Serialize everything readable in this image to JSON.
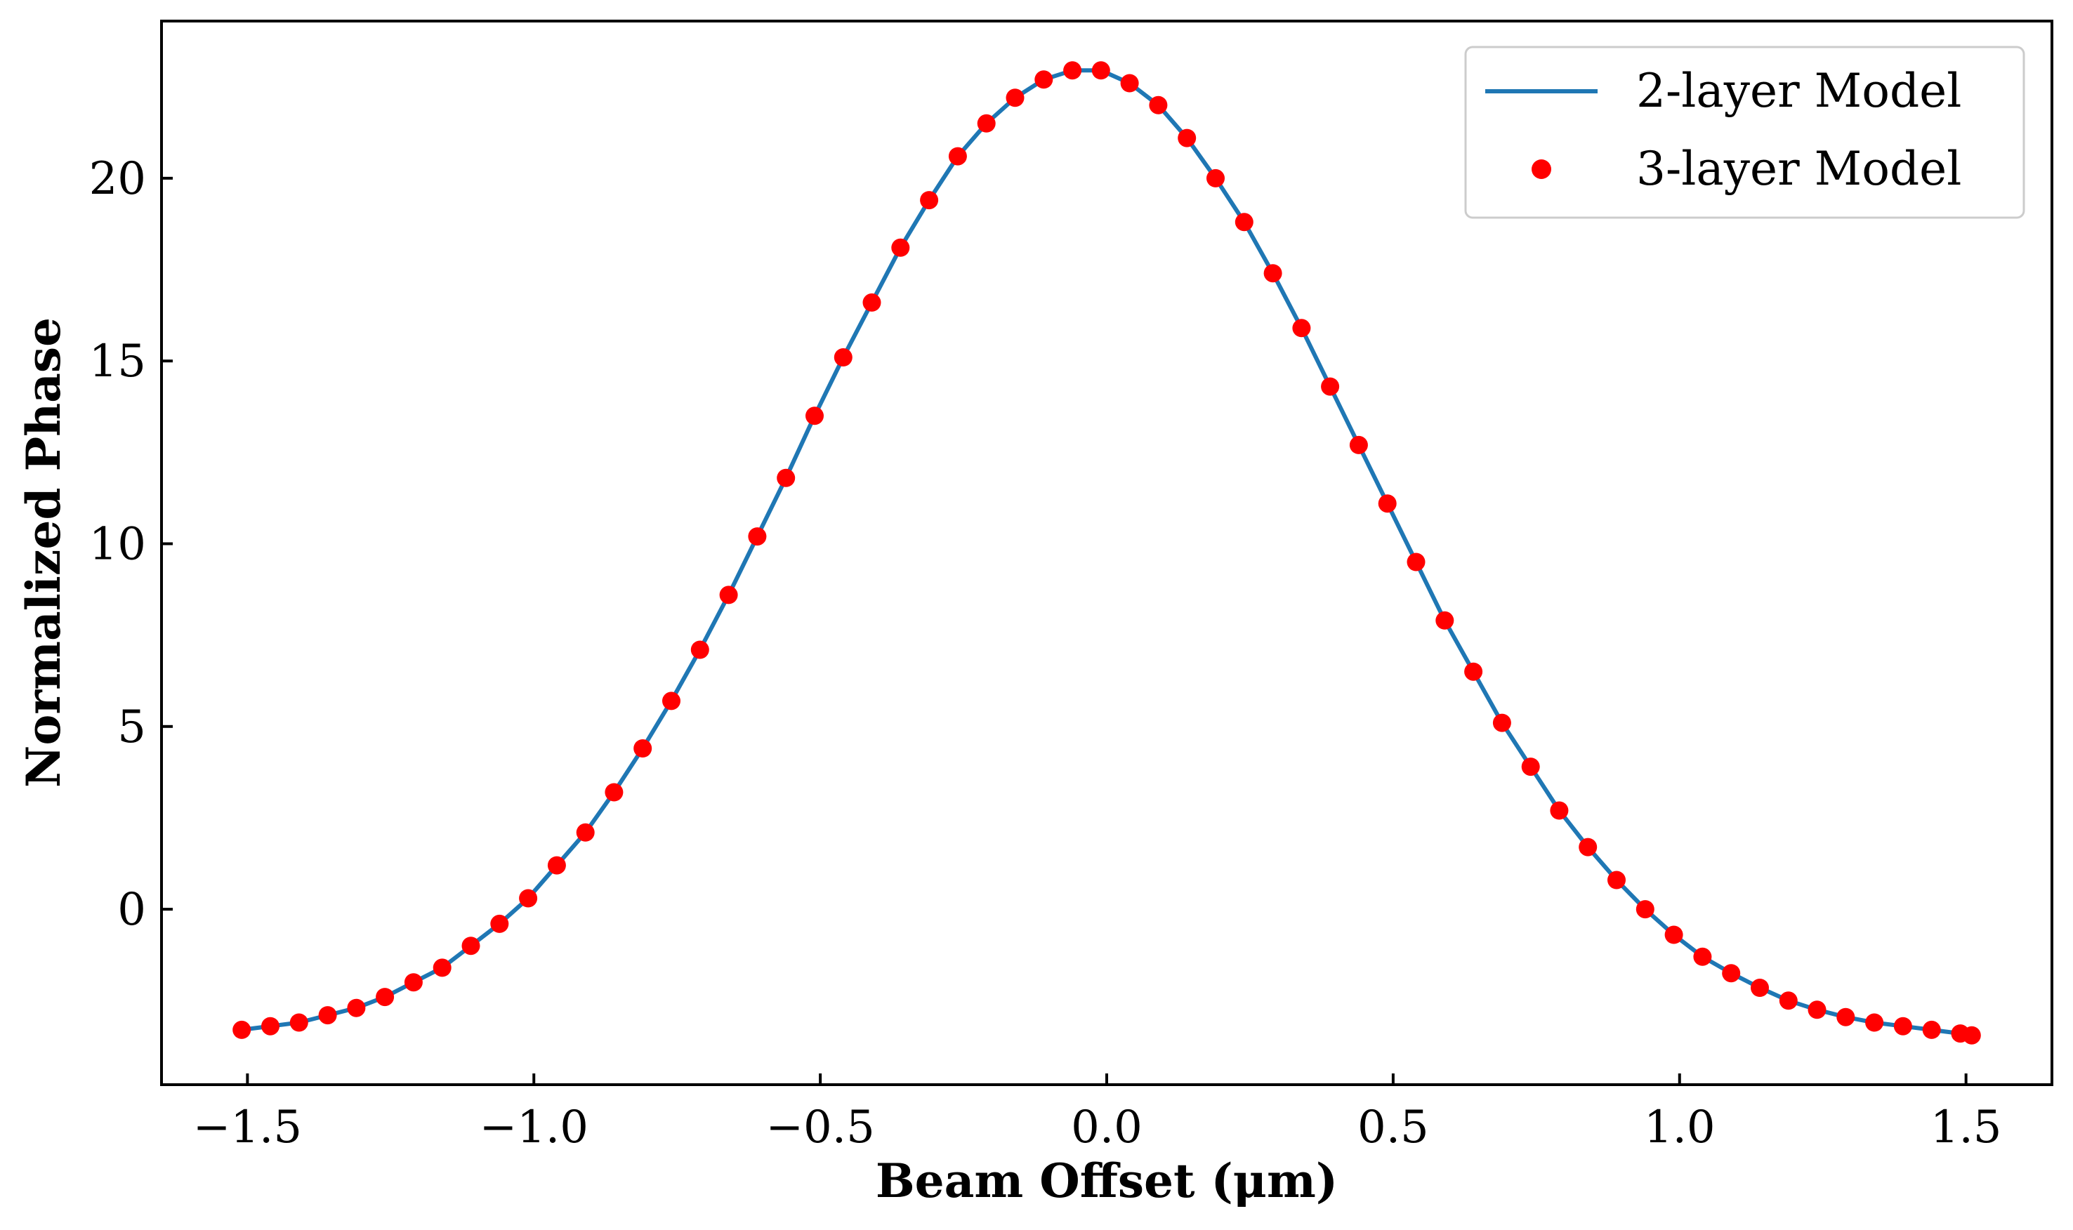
{
  "chart_data": {
    "type": "line",
    "title": "",
    "xlabel": "Beam Offset (μm)",
    "ylabel": "Normalized Phase",
    "xlim": [
      -1.65,
      1.65
    ],
    "ylim": [
      -4.8,
      24.3
    ],
    "xticks": [
      -1.5,
      -1.0,
      -0.5,
      0.0,
      0.5,
      1.0,
      1.5
    ],
    "xtick_labels": [
      "−1.5",
      "−1.0",
      "−0.5",
      "0.0",
      "0.5",
      "1.0",
      "1.5"
    ],
    "yticks": [
      0,
      5,
      10,
      15,
      20
    ],
    "ytick_labels": [
      "0",
      "5",
      "10",
      "15",
      "20"
    ],
    "grid": false,
    "legend_position": "top-right",
    "colors": {
      "line": "#1f77b4",
      "marker": "#ff0000"
    },
    "series": [
      {
        "name": "2-layer Model",
        "style": "line",
        "x": [
          -1.51,
          -1.46,
          -1.41,
          -1.36,
          -1.31,
          -1.26,
          -1.21,
          -1.16,
          -1.11,
          -1.06,
          -1.01,
          -0.96,
          -0.91,
          -0.86,
          -0.81,
          -0.76,
          -0.71,
          -0.66,
          -0.61,
          -0.56,
          -0.51,
          -0.46,
          -0.41,
          -0.36,
          -0.31,
          -0.26,
          -0.21,
          -0.16,
          -0.11,
          -0.06,
          -0.01,
          0.04,
          0.09,
          0.14,
          0.19,
          0.24,
          0.29,
          0.34,
          0.39,
          0.44,
          0.49,
          0.54,
          0.59,
          0.64,
          0.69,
          0.74,
          0.79,
          0.84,
          0.89,
          0.94,
          0.99,
          1.04,
          1.09,
          1.14,
          1.19,
          1.24,
          1.29,
          1.34,
          1.39,
          1.44,
          1.49,
          1.51
        ],
        "y": [
          -3.3,
          -3.2,
          -3.1,
          -2.9,
          -2.7,
          -2.4,
          -2.0,
          -1.6,
          -1.0,
          -0.4,
          0.3,
          1.2,
          2.1,
          3.2,
          4.4,
          5.7,
          7.1,
          8.6,
          10.2,
          11.8,
          13.5,
          15.1,
          16.6,
          18.1,
          19.4,
          20.6,
          21.5,
          22.2,
          22.7,
          22.95,
          22.95,
          22.6,
          22.0,
          21.1,
          20.0,
          18.8,
          17.4,
          15.9,
          14.3,
          12.7,
          11.1,
          9.5,
          7.9,
          6.5,
          5.1,
          3.9,
          2.7,
          1.7,
          0.8,
          0.0,
          -0.7,
          -1.3,
          -1.75,
          -2.15,
          -2.5,
          -2.75,
          -2.95,
          -3.1,
          -3.2,
          -3.3,
          -3.4,
          -3.45
        ]
      },
      {
        "name": "3-layer Model",
        "style": "markers",
        "x": [
          -1.51,
          -1.46,
          -1.41,
          -1.36,
          -1.31,
          -1.26,
          -1.21,
          -1.16,
          -1.11,
          -1.06,
          -1.01,
          -0.96,
          -0.91,
          -0.86,
          -0.81,
          -0.76,
          -0.71,
          -0.66,
          -0.61,
          -0.56,
          -0.51,
          -0.46,
          -0.41,
          -0.36,
          -0.31,
          -0.26,
          -0.21,
          -0.16,
          -0.11,
          -0.06,
          -0.01,
          0.04,
          0.09,
          0.14,
          0.19,
          0.24,
          0.29,
          0.34,
          0.39,
          0.44,
          0.49,
          0.54,
          0.59,
          0.64,
          0.69,
          0.74,
          0.79,
          0.84,
          0.89,
          0.94,
          0.99,
          1.04,
          1.09,
          1.14,
          1.19,
          1.24,
          1.29,
          1.34,
          1.39,
          1.44,
          1.49,
          1.51
        ],
        "y": [
          -3.3,
          -3.2,
          -3.1,
          -2.9,
          -2.7,
          -2.4,
          -2.0,
          -1.6,
          -1.0,
          -0.4,
          0.3,
          1.2,
          2.1,
          3.2,
          4.4,
          5.7,
          7.1,
          8.6,
          10.2,
          11.8,
          13.5,
          15.1,
          16.6,
          18.1,
          19.4,
          20.6,
          21.5,
          22.2,
          22.7,
          22.95,
          22.95,
          22.6,
          22.0,
          21.1,
          20.0,
          18.8,
          17.4,
          15.9,
          14.3,
          12.7,
          11.1,
          9.5,
          7.9,
          6.5,
          5.1,
          3.9,
          2.7,
          1.7,
          0.8,
          0.0,
          -0.7,
          -1.3,
          -1.75,
          -2.15,
          -2.5,
          -2.75,
          -2.95,
          -3.1,
          -3.2,
          -3.3,
          -3.4,
          -3.45
        ]
      }
    ]
  }
}
